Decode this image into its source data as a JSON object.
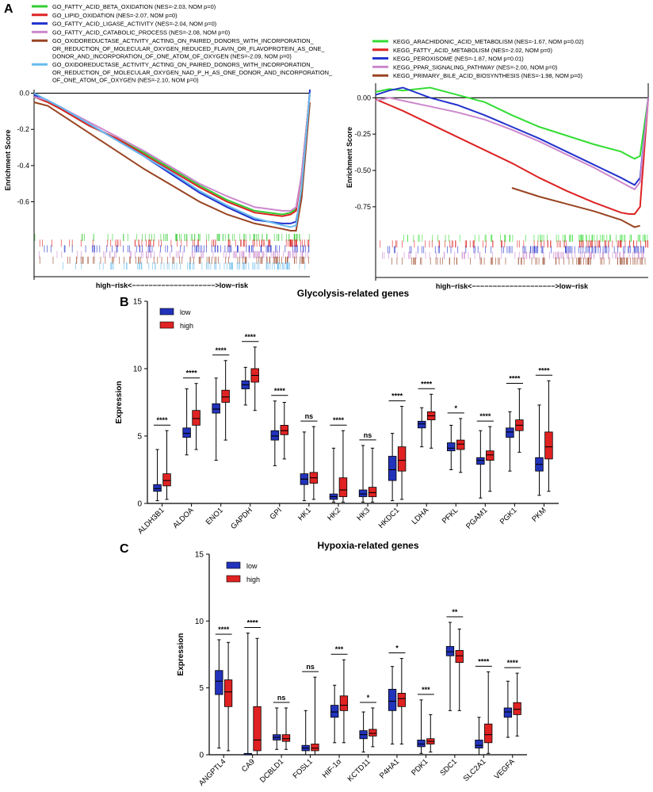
{
  "panel_labels": {
    "a": "A",
    "b": "B",
    "c": "C"
  },
  "chart_data": [
    {
      "type": "line",
      "panel": "A",
      "ylabel": "Enrichment Score",
      "xlabel": "high−risk<−−−−−−−−−−−−−−−−−−−−>low−risk",
      "ylim": [
        -0.76,
        0.02
      ],
      "yticks": [
        0.0,
        -0.2,
        -0.4,
        -0.6
      ],
      "ytick_labels": [
        "0.0",
        "-0.2",
        "-0.4",
        "-0.6"
      ],
      "x": [
        0,
        0.05,
        0.1,
        0.2,
        0.3,
        0.4,
        0.5,
        0.6,
        0.7,
        0.8,
        0.9,
        0.93,
        0.95,
        0.97,
        1.0
      ],
      "series": [
        {
          "name": "GO_FATTY_ACID_BETA_OXIDATION (NES=-2.03, NOM p=0)",
          "color": "#33cc33",
          "values": [
            -0.02,
            -0.05,
            -0.09,
            -0.18,
            -0.25,
            -0.33,
            -0.42,
            -0.51,
            -0.59,
            -0.65,
            -0.67,
            -0.66,
            -0.64,
            -0.45,
            0.0
          ]
        },
        {
          "name": "GO_LIPID_OXIDATION (NES=-2.07, NOM p=0)",
          "color": "#dd2222",
          "values": [
            -0.02,
            -0.05,
            -0.09,
            -0.18,
            -0.25,
            -0.34,
            -0.43,
            -0.52,
            -0.6,
            -0.66,
            -0.68,
            -0.67,
            -0.65,
            -0.45,
            0.0
          ]
        },
        {
          "name": "GO_FATTY_ACID_LIGASE_ACTIVITY (NES=-2.04, NOM p=0)",
          "color": "#2233cc",
          "values": [
            -0.01,
            -0.04,
            -0.08,
            -0.17,
            -0.26,
            -0.35,
            -0.45,
            -0.55,
            -0.63,
            -0.7,
            -0.72,
            -0.72,
            -0.71,
            -0.55,
            0.02
          ]
        },
        {
          "name": "GO_FATTY_ACID_CATABOLIC_PROCESS (NES=-2.08, NOM p=0)",
          "color": "#cc88cc",
          "values": [
            -0.02,
            -0.04,
            -0.08,
            -0.16,
            -0.24,
            -0.32,
            -0.41,
            -0.5,
            -0.57,
            -0.63,
            -0.65,
            -0.65,
            -0.63,
            -0.45,
            0.0
          ]
        },
        {
          "name": "GO_OXIDOREDUCTASE_ACTIVITY_ACTING_ON_PAIRED_DONORS_WITH_INCORPORATION_OR_REDUCTION_OF_MOLECULAR_OXYGEN_REDUCED_FLAVIN_OR_FLAVOPROTEIN_AS_ONE_DONOR_AND_INCORPORATION_OF_ONE_ATOM_OF_OXYGEN (NES=-2.09, NOM p=0)",
          "color": "#994422",
          "values": [
            -0.05,
            -0.07,
            -0.12,
            -0.22,
            -0.32,
            -0.42,
            -0.51,
            -0.6,
            -0.67,
            -0.72,
            -0.75,
            -0.76,
            -0.76,
            -0.58,
            -0.05
          ]
        },
        {
          "name": "GO_OXIDOREDUCTASE_ACTIVITY_ACTING_ON_PAIRED_DONORS_WITH_INCORPORATION_OR_REDUCTION_OF_MOLECULAR_OXYGEN_NAD_P_H_AS_ONE_DONOR_AND_INCORPORATION_OF_ONE_ATOM_OF_OXYGEN (NES=-2.10, NOM p=0)",
          "color": "#66bbee",
          "values": [
            0.0,
            -0.04,
            -0.08,
            -0.17,
            -0.26,
            -0.35,
            -0.44,
            -0.54,
            -0.62,
            -0.69,
            -0.73,
            -0.74,
            -0.73,
            -0.52,
            0.0
          ]
        }
      ]
    },
    {
      "type": "line",
      "panel": "A",
      "ylabel": "Enrichment Score",
      "xlabel": "high−risk<−−−−−−−−−−−−−−−−−−−−>low−risk",
      "ylim": [
        -0.92,
        0.1
      ],
      "yticks": [
        0.0,
        -0.25,
        -0.5,
        -0.75
      ],
      "ytick_labels": [
        "0.00",
        "-0.25",
        "-0.50",
        "-0.75"
      ],
      "x": [
        0,
        0.05,
        0.1,
        0.2,
        0.3,
        0.4,
        0.5,
        0.6,
        0.7,
        0.8,
        0.9,
        0.93,
        0.95,
        0.97,
        1.0
      ],
      "series": [
        {
          "name": "KEGG_ARACHIDONIC_ACID_METABOLISM (NES=-1.67, NOM p=0.02)",
          "color": "#33dd33",
          "values": [
            0.04,
            0.06,
            0.05,
            0.07,
            0.02,
            -0.03,
            -0.12,
            -0.2,
            -0.26,
            -0.32,
            -0.37,
            -0.4,
            -0.42,
            -0.4,
            0.0
          ]
        },
        {
          "name": "KEGG_FATTY_ACID_METABOLISM (NES=-2.02, NOM p=0)",
          "color": "#dd2222",
          "values": [
            -0.01,
            -0.05,
            -0.09,
            -0.18,
            -0.27,
            -0.36,
            -0.45,
            -0.55,
            -0.64,
            -0.72,
            -0.79,
            -0.8,
            -0.8,
            -0.75,
            0.0
          ]
        },
        {
          "name": "KEGG_PEROXISOME (NES=-1.87, NOM p=0.01)",
          "color": "#2233cc",
          "values": [
            0.02,
            0.05,
            0.07,
            0.0,
            -0.05,
            -0.12,
            -0.2,
            -0.28,
            -0.37,
            -0.46,
            -0.55,
            -0.58,
            -0.6,
            -0.55,
            0.0
          ]
        },
        {
          "name": "KEGG_PPAR_SIGNALING_PATHWAY (NES=-2.00, NOM p=0)",
          "color": "#cc88cc",
          "values": [
            -0.02,
            0.0,
            -0.02,
            -0.06,
            -0.1,
            -0.15,
            -0.22,
            -0.3,
            -0.39,
            -0.48,
            -0.58,
            -0.61,
            -0.63,
            -0.58,
            0.0
          ]
        },
        {
          "name": "KEGG_PRIMARY_BILE_ACID_BIOSYNTHESIS (NES=-1.98, NOM p=0)",
          "color": "#994422",
          "x": [
            0.5,
            0.6,
            0.7,
            0.8,
            0.9,
            0.95,
            0.97
          ],
          "values": [
            -0.62,
            -0.68,
            -0.73,
            -0.78,
            -0.84,
            -0.89,
            -0.88
          ]
        }
      ]
    },
    {
      "type": "box",
      "panel": "B",
      "title": "Glycolysis-related genes",
      "ylabel": "Expression",
      "ylim": [
        0,
        15
      ],
      "yticks": [
        0,
        5,
        10,
        15
      ],
      "legend": [
        "low",
        "high"
      ],
      "colors": {
        "low": "#2233bb",
        "high": "#e02222"
      },
      "categories": [
        "ALDH3B1",
        "ALDOA",
        "ENO1",
        "GAPDH",
        "GPI",
        "HK1",
        "HK2",
        "HK3",
        "HKDC1",
        "LDHA",
        "PFKL",
        "PGAM1",
        "PGK1",
        "PKM"
      ],
      "significance": [
        "****",
        "****",
        "****",
        "****",
        "****",
        "ns",
        "****",
        "ns",
        "****",
        "****",
        "*",
        "****",
        "****",
        "****"
      ],
      "series": [
        {
          "name": "low",
          "boxes": [
            [
              0.2,
              0.9,
              1.1,
              1.4,
              4.0
            ],
            [
              3.6,
              4.9,
              5.2,
              5.6,
              8.5
            ],
            [
              3.2,
              6.7,
              7.0,
              7.4,
              9.3
            ],
            [
              7.3,
              8.5,
              8.8,
              9.1,
              10.1
            ],
            [
              2.8,
              4.7,
              5.0,
              5.4,
              7.6
            ],
            [
              0.2,
              1.4,
              1.8,
              2.2,
              5.3
            ],
            [
              0.1,
              0.3,
              0.5,
              0.7,
              4.1
            ],
            [
              0.1,
              0.5,
              0.7,
              1.0,
              4.3
            ],
            [
              0.2,
              1.7,
              2.5,
              3.5,
              5.2
            ],
            [
              4.2,
              5.6,
              5.9,
              6.1,
              7.1
            ],
            [
              2.5,
              3.9,
              4.1,
              4.5,
              5.8
            ],
            [
              0.4,
              2.9,
              3.2,
              3.4,
              5.4
            ],
            [
              2.4,
              4.9,
              5.3,
              5.6,
              6.8
            ],
            [
              0.6,
              2.4,
              2.9,
              3.4,
              7.3
            ]
          ]
        },
        {
          "name": "high",
          "boxes": [
            [
              0.3,
              1.3,
              1.7,
              2.2,
              5.4
            ],
            [
              4.0,
              5.8,
              6.3,
              6.9,
              8.9
            ],
            [
              4.7,
              7.5,
              7.9,
              8.4,
              10.6
            ],
            [
              6.9,
              9.0,
              9.5,
              10.0,
              11.6
            ],
            [
              3.3,
              5.1,
              5.4,
              5.8,
              7.5
            ],
            [
              0.3,
              1.5,
              1.9,
              2.3,
              5.7
            ],
            [
              0.1,
              0.5,
              1.0,
              1.9,
              5.4
            ],
            [
              0.1,
              0.5,
              0.8,
              1.2,
              4.1
            ],
            [
              0.3,
              2.4,
              3.2,
              4.2,
              7.2
            ],
            [
              4.1,
              6.2,
              6.5,
              6.8,
              8.1
            ],
            [
              2.3,
              4.0,
              4.4,
              4.7,
              6.3
            ],
            [
              0.9,
              3.2,
              3.6,
              3.9,
              5.7
            ],
            [
              3.8,
              5.4,
              5.8,
              6.2,
              8.5
            ],
            [
              0.9,
              3.3,
              4.2,
              5.3,
              9.1
            ]
          ]
        }
      ]
    },
    {
      "type": "box",
      "panel": "C",
      "title": "Hypoxia-related genes",
      "ylabel": "Expression",
      "ylim": [
        0,
        15
      ],
      "yticks": [
        0,
        5,
        10,
        15
      ],
      "legend": [
        "low",
        "high"
      ],
      "colors": {
        "low": "#2233bb",
        "high": "#e02222"
      },
      "categories": [
        "ANGPTL4",
        "CA9",
        "DCBLD1",
        "FOSL1",
        "HIF-1α",
        "KCTD11",
        "P4HA1",
        "PDK1",
        "SDC1",
        "SLC2A1",
        "VEGFA"
      ],
      "significance": [
        "****",
        "****",
        "ns",
        "ns",
        "***",
        "*",
        "*",
        "***",
        "**",
        "****",
        "****"
      ],
      "series": [
        {
          "name": "low",
          "boxes": [
            [
              0.5,
              4.5,
              5.5,
              6.3,
              8.6
            ],
            [
              0.0,
              0.0,
              0.0,
              0.1,
              9.1
            ],
            [
              0.4,
              1.1,
              1.3,
              1.5,
              3.5
            ],
            [
              0.0,
              0.3,
              0.5,
              0.7,
              3.3
            ],
            [
              0.9,
              2.8,
              3.2,
              3.7,
              5.2
            ],
            [
              0.2,
              1.2,
              1.5,
              1.8,
              3.2
            ],
            [
              0.8,
              3.3,
              4.0,
              4.9,
              6.6
            ],
            [
              0.1,
              0.6,
              0.8,
              1.1,
              4.1
            ],
            [
              3.3,
              7.4,
              7.7,
              8.1,
              9.9
            ],
            [
              0.0,
              0.5,
              0.7,
              1.1,
              2.8
            ],
            [
              1.3,
              2.8,
              3.2,
              3.5,
              5.5
            ]
          ]
        },
        {
          "name": "high",
          "boxes": [
            [
              0.3,
              3.6,
              4.7,
              5.6,
              8.4
            ],
            [
              0.0,
              0.3,
              1.1,
              3.6,
              8.7
            ],
            [
              0.4,
              1.0,
              1.2,
              1.5,
              3.5
            ],
            [
              0.0,
              0.3,
              0.5,
              0.8,
              5.8
            ],
            [
              0.9,
              3.3,
              3.7,
              4.4,
              7.1
            ],
            [
              0.6,
              1.4,
              1.6,
              1.9,
              3.5
            ],
            [
              0.8,
              3.6,
              4.2,
              4.6,
              7.2
            ],
            [
              0.2,
              0.8,
              1.0,
              1.2,
              3.0
            ],
            [
              3.3,
              6.9,
              7.4,
              7.8,
              9.4
            ],
            [
              0.1,
              0.9,
              1.5,
              2.3,
              6.2
            ],
            [
              1.4,
              3.0,
              3.4,
              3.9,
              6.1
            ]
          ]
        }
      ]
    }
  ]
}
